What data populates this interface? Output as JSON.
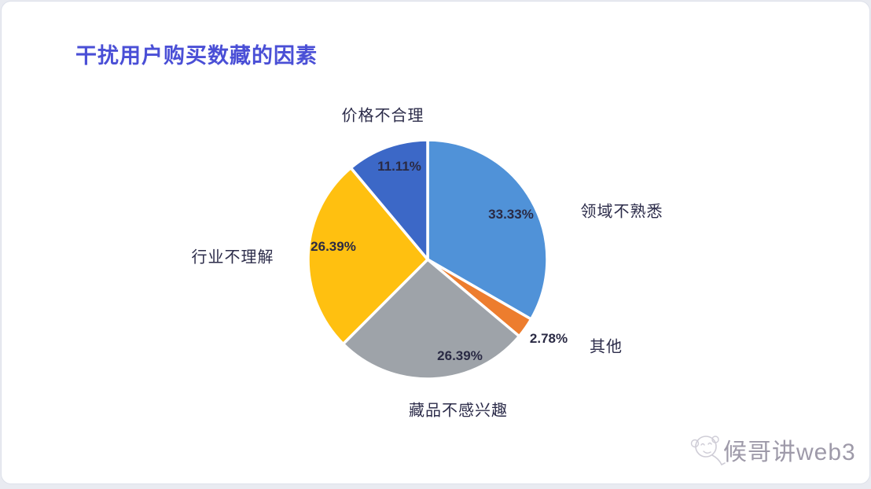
{
  "page": {
    "title": "干扰用户购买数藏的因素",
    "title_color": "#4a4fd6",
    "background_color": "#ffffff"
  },
  "chart_data": {
    "type": "pie",
    "title": "干扰用户购买数藏的因素",
    "start_angle_deg": 0,
    "direction": "clockwise",
    "gap_stroke_color": "#ffffff",
    "slices": [
      {
        "label": "领域不熟悉",
        "value": 33.33,
        "display": "33.33%",
        "color": "#5092d8"
      },
      {
        "label": "其他",
        "value": 2.78,
        "display": "2.78%",
        "color": "#ed7d2e"
      },
      {
        "label": "藏品不感兴趣",
        "value": 26.39,
        "display": "26.39%",
        "color": "#9ea3a9"
      },
      {
        "label": "行业不理解",
        "value": 26.39,
        "display": "26.39%",
        "color": "#ffc010"
      },
      {
        "label": "价格不合理",
        "value": 11.11,
        "display": "11.11%",
        "color": "#3c68c7"
      }
    ]
  },
  "watermark": {
    "text": "候哥讲web3",
    "icon": "monkey-sketch-icon"
  }
}
